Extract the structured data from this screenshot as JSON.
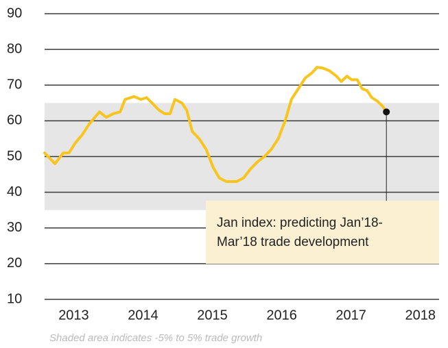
{
  "chart_data": {
    "type": "line",
    "footnote": "Shaded area indicates -5% to 5% trade growth",
    "annotation": {
      "lines": [
        "Jan index: predicting Jan’18-",
        "Mar’18 trade development"
      ]
    },
    "band": {
      "ylim": [
        35,
        65
      ],
      "color": "#e6e6e6"
    },
    "series": [
      {
        "color": "#f7c51e",
        "x": [
          2012.58,
          2012.73,
          2012.85,
          2012.93,
          2013.03,
          2013.12,
          2013.22,
          2013.37,
          2013.47,
          2013.57,
          2013.67,
          2013.74,
          2013.87,
          2013.97,
          2014.05,
          2014.13,
          2014.23,
          2014.31,
          2014.39,
          2014.46,
          2014.56,
          2014.63,
          2014.71,
          2014.81,
          2014.91,
          2015.01,
          2015.1,
          2015.2,
          2015.35,
          2015.45,
          2015.55,
          2015.65,
          2015.75,
          2015.85,
          2015.95,
          2016.05,
          2016.14,
          2016.24,
          2016.34,
          2016.44,
          2016.51,
          2016.59,
          2016.69,
          2016.79,
          2016.86,
          2016.94,
          2017.01,
          2017.09,
          2017.16,
          2017.23,
          2017.3,
          2017.38,
          2017.46,
          2017.51
        ],
        "values": [
          51,
          48,
          51,
          51,
          54,
          56,
          59,
          62.5,
          61,
          62,
          62.5,
          66,
          66.8,
          66,
          66.5,
          65,
          63,
          62,
          62,
          66,
          65,
          63,
          57,
          55,
          52,
          47,
          44,
          43,
          43,
          44,
          46.5,
          48.5,
          50,
          52,
          55,
          60,
          66,
          69,
          72,
          73.5,
          75,
          74.8,
          74,
          72.5,
          71,
          72.5,
          71.5,
          71.5,
          69,
          68.5,
          66.5,
          65.5,
          64,
          62.5
        ]
      }
    ],
    "xlim": [
      2012.58,
      2018.27
    ],
    "xticks": [
      2013,
      2014,
      2015,
      2016,
      2017,
      2018
    ],
    "ylim": [
      10,
      90
    ],
    "yticks": [
      10,
      20,
      30,
      40,
      50,
      60,
      70,
      80,
      90
    ],
    "grid": true
  }
}
